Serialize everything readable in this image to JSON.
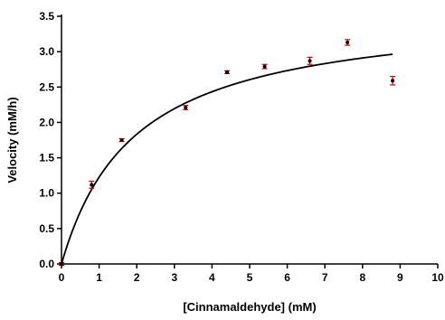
{
  "chart_data": {
    "type": "scatter",
    "xlabel": "[Cinnamaldehyde] (mM)",
    "ylabel": "Velocity (mM/h)",
    "xlim": [
      0,
      10
    ],
    "ylim": [
      0,
      3.5
    ],
    "xticks": [
      "0",
      "1",
      "2",
      "3",
      "4",
      "5",
      "6",
      "7",
      "8",
      "9",
      "10"
    ],
    "yticks": [
      "0.0",
      "0.5",
      "1.0",
      "1.5",
      "2.0",
      "2.5",
      "3.0",
      "3.5"
    ],
    "grid": false,
    "points": [
      {
        "x": 0,
        "y": 0.0,
        "err": 0.02
      },
      {
        "x": 0.8,
        "y": 1.12,
        "err": 0.05
      },
      {
        "x": 1.6,
        "y": 1.75,
        "err": 0.02
      },
      {
        "x": 3.3,
        "y": 2.21,
        "err": 0.03
      },
      {
        "x": 4.4,
        "y": 2.71,
        "err": 0.02
      },
      {
        "x": 5.4,
        "y": 2.79,
        "err": 0.03
      },
      {
        "x": 6.6,
        "y": 2.87,
        "err": 0.05
      },
      {
        "x": 7.6,
        "y": 3.13,
        "err": 0.04
      },
      {
        "x": 8.8,
        "y": 2.59,
        "err": 0.06
      }
    ],
    "fit": {
      "model": "michaelis-menten",
      "vmax": 3.62,
      "km": 1.95,
      "x_range": [
        0,
        8.8
      ]
    },
    "colors": {
      "point": "#000000",
      "error_bar": "#cc0000",
      "fit_line": "#000000",
      "axis": "#000000"
    }
  }
}
